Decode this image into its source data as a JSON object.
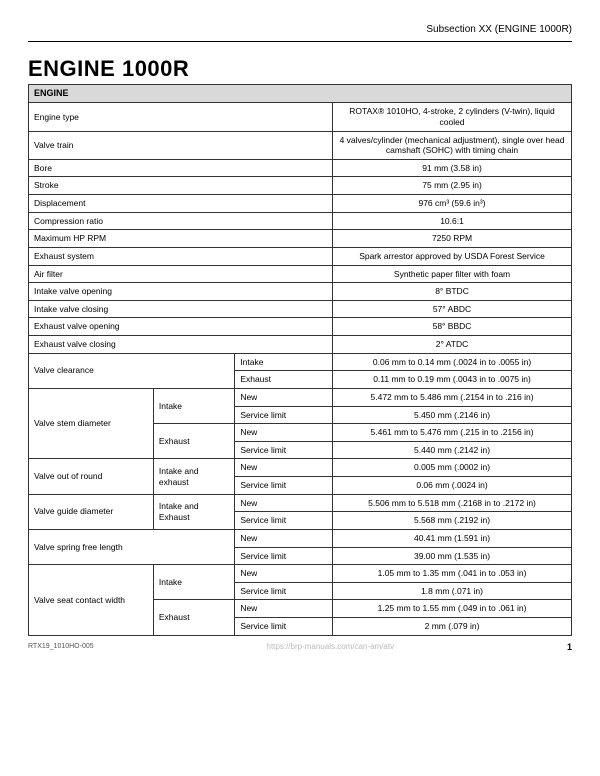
{
  "header": {
    "subsection": "Subsection XX (ENGINE 1000R)",
    "title": "ENGINE 1000R"
  },
  "section_title": "ENGINE",
  "rows": [
    {
      "type": "simple",
      "label": "Engine type",
      "value": "ROTAX® 1010HO, 4-stroke, 2 cylinders (V-twin), liquid cooled"
    },
    {
      "type": "simple",
      "label": "Valve train",
      "value": "4 valves/cylinder (mechanical adjustment), single over head camshaft (SOHC) with timing chain"
    },
    {
      "type": "simple",
      "label": "Bore",
      "value": "91 mm (3.58 in)"
    },
    {
      "type": "simple",
      "label": "Stroke",
      "value": "75 mm (2.95 in)"
    },
    {
      "type": "simple",
      "label": "Displacement",
      "value": "976 cm³ (59.6 in³)"
    },
    {
      "type": "simple",
      "label": "Compression ratio",
      "value": "10.6:1"
    },
    {
      "type": "simple",
      "label": "Maximum HP RPM",
      "value": "7250 RPM"
    },
    {
      "type": "simple",
      "label": "Exhaust system",
      "value": "Spark arrestor approved by USDA Forest Service"
    },
    {
      "type": "simple",
      "label": "Air filter",
      "value": "Synthetic paper filter with foam"
    },
    {
      "type": "simple",
      "label": "Intake valve opening",
      "value": "8° BTDC"
    },
    {
      "type": "simple",
      "label": "Intake valve closing",
      "value": "57° ABDC"
    },
    {
      "type": "simple",
      "label": "Exhaust valve opening",
      "value": "58° BBDC"
    },
    {
      "type": "simple",
      "label": "Exhaust valve closing",
      "value": "2° ATDC"
    },
    {
      "type": "two",
      "label": "Valve clearance",
      "subs": [
        {
          "sub": "Intake",
          "value": "0.06 mm to 0.14 mm (.0024 in to .0055 in)"
        },
        {
          "sub": "Exhaust",
          "value": "0.11 mm to 0.19 mm (.0043 in to .0075 in)"
        }
      ]
    },
    {
      "type": "four",
      "label": "Valve stem diameter",
      "groups": [
        {
          "mid": "Intake",
          "rows": [
            {
              "sub": "New",
              "value": "5.472 mm to 5.486 mm (.2154 in to .216 in)"
            },
            {
              "sub": "Service limit",
              "value": "5.450 mm (.2146 in)"
            }
          ]
        },
        {
          "mid": "Exhaust",
          "rows": [
            {
              "sub": "New",
              "value": "5.461 mm to 5.476 mm (.215 in to .2156 in)"
            },
            {
              "sub": "Service limit",
              "value": "5.440 mm (.2142 in)"
            }
          ]
        }
      ]
    },
    {
      "type": "mid2",
      "label": "Valve out of round",
      "mid": "Intake and exhaust",
      "rows": [
        {
          "sub": "New",
          "value": "0.005 mm (.0002 in)"
        },
        {
          "sub": "Service limit",
          "value": "0.06 mm (.0024 in)"
        }
      ]
    },
    {
      "type": "mid2",
      "label": "Valve guide diameter",
      "mid": "Intake and Exhaust",
      "rows": [
        {
          "sub": "New",
          "value": "5.506 mm to 5.518 mm (.2168 in to .2172 in)"
        },
        {
          "sub": "Service limit",
          "value": "5.568 mm (.2192 in)"
        }
      ]
    },
    {
      "type": "two2",
      "label": "Valve spring free length",
      "rows": [
        {
          "sub": "New",
          "value": "40.41 mm (1.591 in)"
        },
        {
          "sub": "Service limit",
          "value": "39.00 mm (1.535 in)"
        }
      ]
    },
    {
      "type": "four",
      "label": "Valve seat contact width",
      "groups": [
        {
          "mid": "Intake",
          "rows": [
            {
              "sub": "New",
              "value": "1.05 mm to 1.35 mm (.041 in to .053 in)"
            },
            {
              "sub": "Service limit",
              "value": "1.8 mm (.071 in)"
            }
          ]
        },
        {
          "mid": "Exhaust",
          "rows": [
            {
              "sub": "New",
              "value": "1.25 mm to 1.55 mm (.049 in to .061 in)"
            },
            {
              "sub": "Service limit",
              "value": "2 mm (.079 in)"
            }
          ]
        }
      ]
    }
  ],
  "footer": {
    "left": "RTX19_1010HO-005",
    "mid": "https://brp-manuals.com/can-am/atv",
    "page": "1"
  }
}
